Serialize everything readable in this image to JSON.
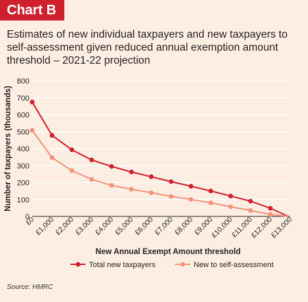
{
  "header": {
    "label": "Chart B",
    "title": "Estimates of new individual taxpayers and new taxpayers to self-assessment given reduced annual exemption amount threshold – 2021-22 projection"
  },
  "source": "Source: HMRC",
  "colors": {
    "background": "#fdeee3",
    "label_bg": "#d0202e",
    "series_total": "#d0202e",
    "series_sa": "#f2937a",
    "grid": "#ffffff"
  },
  "chart_data": {
    "type": "line",
    "xlabel": "New Annual Exempt Amount threshold",
    "ylabel": "Number of taxpayers (thousands)",
    "ylim": [
      0,
      800
    ],
    "xlim": [
      0,
      13000
    ],
    "yticks": [
      "0",
      "100",
      "200",
      "300",
      "400",
      "500",
      "600",
      "700",
      "800"
    ],
    "xticks": [
      "£0",
      "£1,000",
      "£2,000",
      "£3,000",
      "£4,000",
      "£5,000",
      "£6,000",
      "£7,000",
      "£8,000",
      "£9,000",
      "£10,000",
      "£11,000",
      "£12,000",
      "£13,000"
    ],
    "grid": true,
    "legend_position": "bottom",
    "x": [
      0,
      1000,
      2000,
      3000,
      4000,
      5000,
      6000,
      7000,
      8000,
      9000,
      10000,
      11000,
      12000,
      12900
    ],
    "series": [
      {
        "name": "Total new taxpayers",
        "color": "#d0202e",
        "values": [
          675,
          478,
          393,
          333,
          295,
          262,
          234,
          205,
          178,
          150,
          120,
          90,
          48,
          0
        ]
      },
      {
        "name": "New to self-assessment",
        "color": "#f2937a",
        "values": [
          508,
          347,
          270,
          218,
          183,
          160,
          140,
          118,
          100,
          80,
          57,
          35,
          12,
          0
        ]
      }
    ]
  }
}
